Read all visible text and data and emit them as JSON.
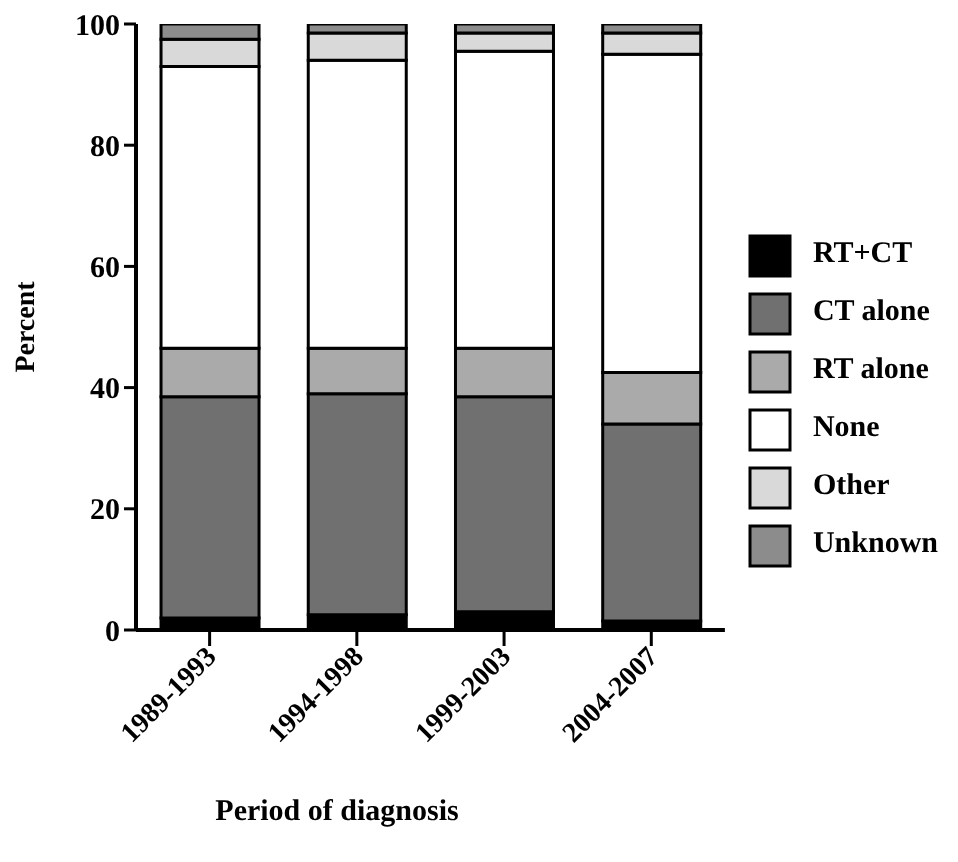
{
  "chart_data": {
    "type": "bar",
    "stacked": true,
    "xlabel": "Period of diagnosis",
    "ylabel": "Percent",
    "categories": [
      "1989-1993",
      "1994-1998",
      "1999-2003",
      "2004-2007"
    ],
    "ylim": [
      0,
      100
    ],
    "yticks": [
      0,
      20,
      40,
      60,
      80,
      100
    ],
    "grid": false,
    "legend": "right",
    "series": [
      {
        "name": "RT+CT",
        "color": "#000000",
        "values": [
          2,
          2.5,
          3,
          1.5
        ]
      },
      {
        "name": "CT alone",
        "color": "#707070",
        "values": [
          36.5,
          36.5,
          35.5,
          32.5
        ]
      },
      {
        "name": "RT alone",
        "color": "#aaaaaa",
        "values": [
          8,
          7.5,
          8,
          8.5
        ]
      },
      {
        "name": "None",
        "color": "#ffffff",
        "values": [
          46.5,
          47.5,
          49,
          52.5
        ]
      },
      {
        "name": "Other",
        "color": "#d9d9d9",
        "values": [
          4.5,
          4.5,
          3,
          3.5
        ]
      },
      {
        "name": "Unknown",
        "color": "#8c8c8c",
        "values": [
          2.5,
          1.5,
          1.5,
          1.5
        ]
      }
    ]
  }
}
